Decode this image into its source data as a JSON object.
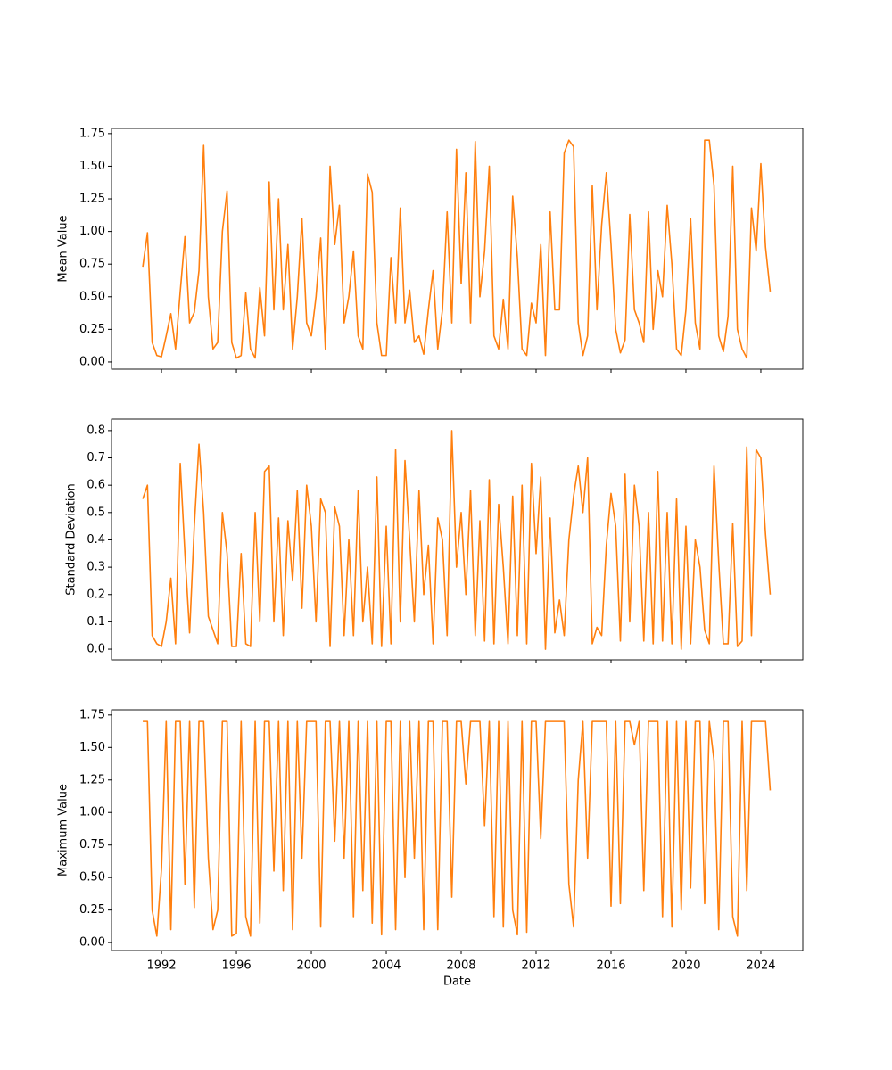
{
  "chart_data": [
    {
      "type": "line",
      "ylabel": "Mean Value",
      "x": [
        1991,
        1991.25,
        1991.5,
        1991.75,
        1992,
        1992.25,
        1992.5,
        1992.75,
        1993,
        1993.25,
        1993.5,
        1993.75,
        1994,
        1994.25,
        1994.5,
        1994.75,
        1995,
        1995.25,
        1995.5,
        1995.75,
        1996,
        1996.25,
        1996.5,
        1996.75,
        1997,
        1997.25,
        1997.5,
        1997.75,
        1998,
        1998.25,
        1998.5,
        1998.75,
        1999,
        1999.25,
        1999.5,
        1999.75,
        2000,
        2000.25,
        2000.5,
        2000.75,
        2001,
        2001.25,
        2001.5,
        2001.75,
        2002,
        2002.25,
        2002.5,
        2002.75,
        2003,
        2003.25,
        2003.5,
        2003.75,
        2004,
        2004.25,
        2004.5,
        2004.75,
        2005,
        2005.25,
        2005.5,
        2005.75,
        2006,
        2006.25,
        2006.5,
        2006.75,
        2007,
        2007.25,
        2007.5,
        2007.75,
        2008,
        2008.25,
        2008.5,
        2008.75,
        2009,
        2009.25,
        2009.5,
        2009.75,
        2010,
        2010.25,
        2010.5,
        2010.75,
        2011,
        2011.25,
        2011.5,
        2011.75,
        2012,
        2012.25,
        2012.5,
        2012.75,
        2013,
        2013.25,
        2013.5,
        2013.75,
        2014,
        2014.25,
        2014.5,
        2014.75,
        2015,
        2015.25,
        2015.5,
        2015.75,
        2016,
        2016.25,
        2016.5,
        2016.75,
        2017,
        2017.25,
        2017.5,
        2017.75,
        2018,
        2018.25,
        2018.5,
        2018.75,
        2019,
        2019.25,
        2019.5,
        2019.75,
        2020,
        2020.25,
        2020.5,
        2020.75,
        2021,
        2021.25,
        2021.5,
        2021.75,
        2022,
        2022.25,
        2022.5,
        2022.75,
        2023,
        2023.25,
        2023.5,
        2023.75,
        2024,
        2024.25,
        2024.5
      ],
      "series": [
        {
          "color": "#ff7f0e",
          "values": [
            0.73,
            0.99,
            0.15,
            0.05,
            0.04,
            0.2,
            0.37,
            0.1,
            0.54,
            0.96,
            0.3,
            0.38,
            0.7,
            1.66,
            0.5,
            0.1,
            0.15,
            1.0,
            1.31,
            0.15,
            0.03,
            0.05,
            0.53,
            0.1,
            0.03,
            0.57,
            0.2,
            1.38,
            0.4,
            1.25,
            0.4,
            0.9,
            0.1,
            0.5,
            1.1,
            0.3,
            0.2,
            0.5,
            0.95,
            0.1,
            1.5,
            0.9,
            1.2,
            0.3,
            0.5,
            0.85,
            0.2,
            0.1,
            1.44,
            1.3,
            0.3,
            0.05,
            0.05,
            0.8,
            0.3,
            1.18,
            0.3,
            0.55,
            0.15,
            0.2,
            0.06,
            0.4,
            0.7,
            0.1,
            0.4,
            1.15,
            0.3,
            1.63,
            0.6,
            1.45,
            0.3,
            1.69,
            0.5,
            0.85,
            1.5,
            0.2,
            0.1,
            0.48,
            0.1,
            1.27,
            0.8,
            0.1,
            0.05,
            0.45,
            0.3,
            0.9,
            0.05,
            1.15,
            0.4,
            0.4,
            1.6,
            1.7,
            1.65,
            0.3,
            0.05,
            0.2,
            1.35,
            0.4,
            1.05,
            1.45,
            0.9,
            0.25,
            0.07,
            0.17,
            1.13,
            0.4,
            0.3,
            0.15,
            1.15,
            0.25,
            0.7,
            0.5,
            1.2,
            0.75,
            0.1,
            0.05,
            0.4,
            1.1,
            0.3,
            0.1,
            1.7,
            1.7,
            1.35,
            0.2,
            0.08,
            0.35,
            1.5,
            0.25,
            0.1,
            0.03,
            1.18,
            0.85,
            1.52,
            0.88,
            0.54
          ]
        }
      ],
      "xlim": [
        1989.33,
        2026.24
      ],
      "xticks": [
        1992,
        1996,
        2000,
        2004,
        2008,
        2012,
        2016,
        2020,
        2024
      ],
      "ylim": [
        -0.055,
        1.79
      ],
      "yticks": [
        {
          "value": 0,
          "label": "0.00"
        },
        0.25,
        {
          "value": 0.5,
          "label": "0.50"
        },
        0.75,
        {
          "value": 1,
          "label": "1.00"
        },
        1.25,
        {
          "value": 1.5,
          "label": "1.50"
        },
        1.75
      ]
    },
    {
      "type": "line",
      "ylabel": "Standard Deviation",
      "x": [
        1991,
        1991.25,
        1991.5,
        1991.75,
        1992,
        1992.25,
        1992.5,
        1992.75,
        1993,
        1993.25,
        1993.5,
        1993.75,
        1994,
        1994.25,
        1994.5,
        1994.75,
        1995,
        1995.25,
        1995.5,
        1995.75,
        1996,
        1996.25,
        1996.5,
        1996.75,
        1997,
        1997.25,
        1997.5,
        1997.75,
        1998,
        1998.25,
        1998.5,
        1998.75,
        1999,
        1999.25,
        1999.5,
        1999.75,
        2000,
        2000.25,
        2000.5,
        2000.75,
        2001,
        2001.25,
        2001.5,
        2001.75,
        2002,
        2002.25,
        2002.5,
        2002.75,
        2003,
        2003.25,
        2003.5,
        2003.75,
        2004,
        2004.25,
        2004.5,
        2004.75,
        2005,
        2005.25,
        2005.5,
        2005.75,
        2006,
        2006.25,
        2006.5,
        2006.75,
        2007,
        2007.25,
        2007.5,
        2007.75,
        2008,
        2008.25,
        2008.5,
        2008.75,
        2009,
        2009.25,
        2009.5,
        2009.75,
        2010,
        2010.25,
        2010.5,
        2010.75,
        2011,
        2011.25,
        2011.5,
        2011.75,
        2012,
        2012.25,
        2012.5,
        2012.75,
        2013,
        2013.25,
        2013.5,
        2013.75,
        2014,
        2014.25,
        2014.5,
        2014.75,
        2015,
        2015.25,
        2015.5,
        2015.75,
        2016,
        2016.25,
        2016.5,
        2016.75,
        2017,
        2017.25,
        2017.5,
        2017.75,
        2018,
        2018.25,
        2018.5,
        2018.75,
        2019,
        2019.25,
        2019.5,
        2019.75,
        2020,
        2020.25,
        2020.5,
        2020.75,
        2021,
        2021.25,
        2021.5,
        2021.75,
        2022,
        2022.25,
        2022.5,
        2022.75,
        2023,
        2023.25,
        2023.5,
        2023.75,
        2024,
        2024.25,
        2024.5
      ],
      "series": [
        {
          "color": "#ff7f0e",
          "values": [
            0.55,
            0.6,
            0.05,
            0.02,
            0.01,
            0.1,
            0.26,
            0.02,
            0.68,
            0.35,
            0.06,
            0.45,
            0.75,
            0.5,
            0.12,
            0.07,
            0.02,
            0.5,
            0.35,
            0.01,
            0.01,
            0.35,
            0.02,
            0.01,
            0.5,
            0.1,
            0.65,
            0.67,
            0.1,
            0.48,
            0.05,
            0.47,
            0.25,
            0.58,
            0.15,
            0.6,
            0.45,
            0.1,
            0.55,
            0.5,
            0.01,
            0.52,
            0.45,
            0.05,
            0.4,
            0.05,
            0.58,
            0.1,
            0.3,
            0.02,
            0.63,
            0.01,
            0.45,
            0.02,
            0.73,
            0.1,
            0.69,
            0.4,
            0.1,
            0.58,
            0.2,
            0.38,
            0.02,
            0.48,
            0.4,
            0.05,
            0.8,
            0.3,
            0.5,
            0.2,
            0.58,
            0.05,
            0.47,
            0.03,
            0.62,
            0.02,
            0.53,
            0.3,
            0.02,
            0.56,
            0.05,
            0.6,
            0.02,
            0.68,
            0.35,
            0.63,
            0.0,
            0.48,
            0.06,
            0.18,
            0.05,
            0.4,
            0.56,
            0.67,
            0.5,
            0.7,
            0.02,
            0.08,
            0.05,
            0.38,
            0.57,
            0.45,
            0.03,
            0.64,
            0.1,
            0.6,
            0.45,
            0.03,
            0.5,
            0.02,
            0.65,
            0.03,
            0.5,
            0.02,
            0.55,
            0.0,
            0.45,
            0.02,
            0.4,
            0.3,
            0.07,
            0.02,
            0.67,
            0.32,
            0.02,
            0.02,
            0.46,
            0.01,
            0.03,
            0.74,
            0.05,
            0.73,
            0.7,
            0.42,
            0.2
          ]
        }
      ],
      "xlim": [
        1989.33,
        2026.24
      ],
      "xticks": [
        1992,
        1996,
        2000,
        2004,
        2008,
        2012,
        2016,
        2020,
        2024
      ],
      "ylim": [
        -0.039,
        0.842
      ],
      "yticks": [
        {
          "value": 0,
          "label": "0.0"
        },
        0.1,
        0.2,
        0.3,
        0.4,
        0.5,
        0.6,
        0.7,
        0.8
      ]
    },
    {
      "type": "line",
      "ylabel": "Maximum Value",
      "xlabel": "Date",
      "x": [
        1991,
        1991.25,
        1991.5,
        1991.75,
        1992,
        1992.25,
        1992.5,
        1992.75,
        1993,
        1993.25,
        1993.5,
        1993.75,
        1994,
        1994.25,
        1994.5,
        1994.75,
        1995,
        1995.25,
        1995.5,
        1995.75,
        1996,
        1996.25,
        1996.5,
        1996.75,
        1997,
        1997.25,
        1997.5,
        1997.75,
        1998,
        1998.25,
        1998.5,
        1998.75,
        1999,
        1999.25,
        1999.5,
        1999.75,
        2000,
        2000.25,
        2000.5,
        2000.75,
        2001,
        2001.25,
        2001.5,
        2001.75,
        2002,
        2002.25,
        2002.5,
        2002.75,
        2003,
        2003.25,
        2003.5,
        2003.75,
        2004,
        2004.25,
        2004.5,
        2004.75,
        2005,
        2005.25,
        2005.5,
        2005.75,
        2006,
        2006.25,
        2006.5,
        2006.75,
        2007,
        2007.25,
        2007.5,
        2007.75,
        2008,
        2008.25,
        2008.5,
        2008.75,
        2009,
        2009.25,
        2009.5,
        2009.75,
        2010,
        2010.25,
        2010.5,
        2010.75,
        2011,
        2011.25,
        2011.5,
        2011.75,
        2012,
        2012.25,
        2012.5,
        2012.75,
        2013,
        2013.25,
        2013.5,
        2013.75,
        2014,
        2014.25,
        2014.5,
        2014.75,
        2015,
        2015.25,
        2015.5,
        2015.75,
        2016,
        2016.25,
        2016.5,
        2016.75,
        2017,
        2017.25,
        2017.5,
        2017.75,
        2018,
        2018.25,
        2018.5,
        2018.75,
        2019,
        2019.25,
        2019.5,
        2019.75,
        2020,
        2020.25,
        2020.5,
        2020.75,
        2021,
        2021.25,
        2021.5,
        2021.75,
        2022,
        2022.25,
        2022.5,
        2022.75,
        2023,
        2023.25,
        2023.5,
        2023.75,
        2024,
        2024.25,
        2024.5
      ],
      "series": [
        {
          "color": "#ff7f0e",
          "values": [
            1.7,
            1.7,
            0.25,
            0.05,
            0.57,
            1.7,
            0.1,
            1.7,
            1.7,
            0.45,
            1.7,
            0.27,
            1.7,
            1.7,
            0.65,
            0.1,
            0.25,
            1.7,
            1.7,
            0.05,
            0.07,
            1.7,
            0.2,
            0.05,
            1.7,
            0.15,
            1.7,
            1.7,
            0.55,
            1.7,
            0.4,
            1.7,
            0.1,
            1.7,
            0.65,
            1.7,
            1.7,
            1.7,
            0.12,
            1.7,
            1.7,
            0.78,
            1.7,
            0.65,
            1.7,
            0.2,
            1.7,
            0.4,
            1.7,
            0.15,
            1.7,
            0.06,
            1.7,
            1.7,
            0.1,
            1.7,
            0.5,
            1.7,
            0.65,
            1.7,
            0.1,
            1.7,
            1.7,
            0.1,
            1.7,
            1.7,
            0.35,
            1.7,
            1.7,
            1.22,
            1.7,
            1.7,
            1.7,
            0.9,
            1.7,
            0.2,
            1.7,
            0.12,
            1.7,
            0.25,
            0.06,
            1.7,
            0.08,
            1.7,
            1.7,
            0.8,
            1.7,
            1.7,
            1.7,
            1.7,
            1.7,
            0.45,
            0.12,
            1.25,
            1.7,
            0.65,
            1.7,
            1.7,
            1.7,
            1.7,
            0.28,
            1.7,
            0.3,
            1.7,
            1.7,
            1.52,
            1.7,
            0.4,
            1.7,
            1.7,
            1.7,
            0.2,
            1.7,
            0.12,
            1.7,
            0.25,
            1.7,
            0.42,
            1.7,
            1.7,
            0.3,
            1.7,
            1.4,
            0.1,
            1.7,
            1.7,
            0.2,
            0.05,
            1.7,
            0.4,
            1.7,
            1.7,
            1.7,
            1.7,
            1.17
          ]
        }
      ],
      "xlim": [
        1989.33,
        2026.24
      ],
      "xticks": [
        1992,
        1996,
        2000,
        2004,
        2008,
        2012,
        2016,
        2020,
        2024
      ],
      "ylim": [
        -0.061,
        1.79
      ],
      "yticks": [
        {
          "value": 0,
          "label": "0.00"
        },
        0.25,
        {
          "value": 0.5,
          "label": "0.50"
        },
        0.75,
        {
          "value": 1,
          "label": "1.00"
        },
        1.25,
        {
          "value": 1.5,
          "label": "1.50"
        },
        1.75
      ]
    }
  ]
}
